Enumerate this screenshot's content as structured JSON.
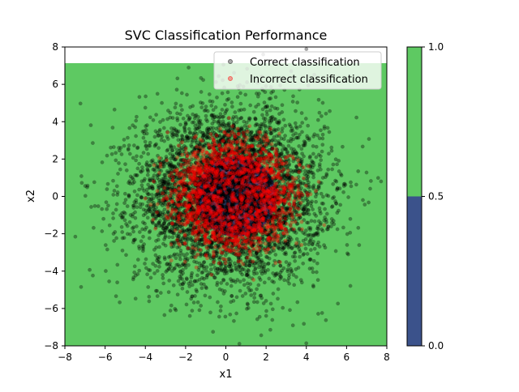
{
  "chart_data": {
    "type": "scatter",
    "title": "SVC Classification Performance",
    "xlabel": "x1",
    "ylabel": "x2",
    "xlim": [
      -8,
      8
    ],
    "ylim": [
      -8,
      8
    ],
    "xticks": [
      -8,
      -6,
      -4,
      -2,
      0,
      2,
      4,
      6,
      8
    ],
    "yticks": [
      -8,
      -6,
      -4,
      -2,
      0,
      2,
      4,
      6,
      8
    ],
    "grid": false,
    "legend_position": "top-right",
    "background_regions": {
      "class_0_color": "#3b528b",
      "class_1_color": "#5ec962",
      "class_0_region": "disc centered near (0.5, 0) with radius about 2",
      "class_1_region": "everything else"
    },
    "colorbar": {
      "ticks": [
        0.0,
        0.5,
        1.0
      ],
      "tick_labels": [
        "0.0",
        "0.5",
        "1.0"
      ],
      "bands": [
        {
          "from": 0.0,
          "to": 0.5,
          "color": "#3b528b"
        },
        {
          "from": 0.5,
          "to": 1.0,
          "color": "#5ec962"
        }
      ]
    },
    "series": [
      {
        "name": "Correct classification",
        "color": "#000000",
        "opacity": 0.35,
        "distribution": {
          "center": [
            0.2,
            0.0
          ],
          "spread": 2.3,
          "count": 5200
        }
      },
      {
        "name": "Incorrect classification",
        "color": "#ff0000",
        "opacity": 0.35,
        "distribution": {
          "center_ring_radius": 2.2,
          "ring_width": 0.8,
          "count": 1800
        }
      }
    ]
  }
}
